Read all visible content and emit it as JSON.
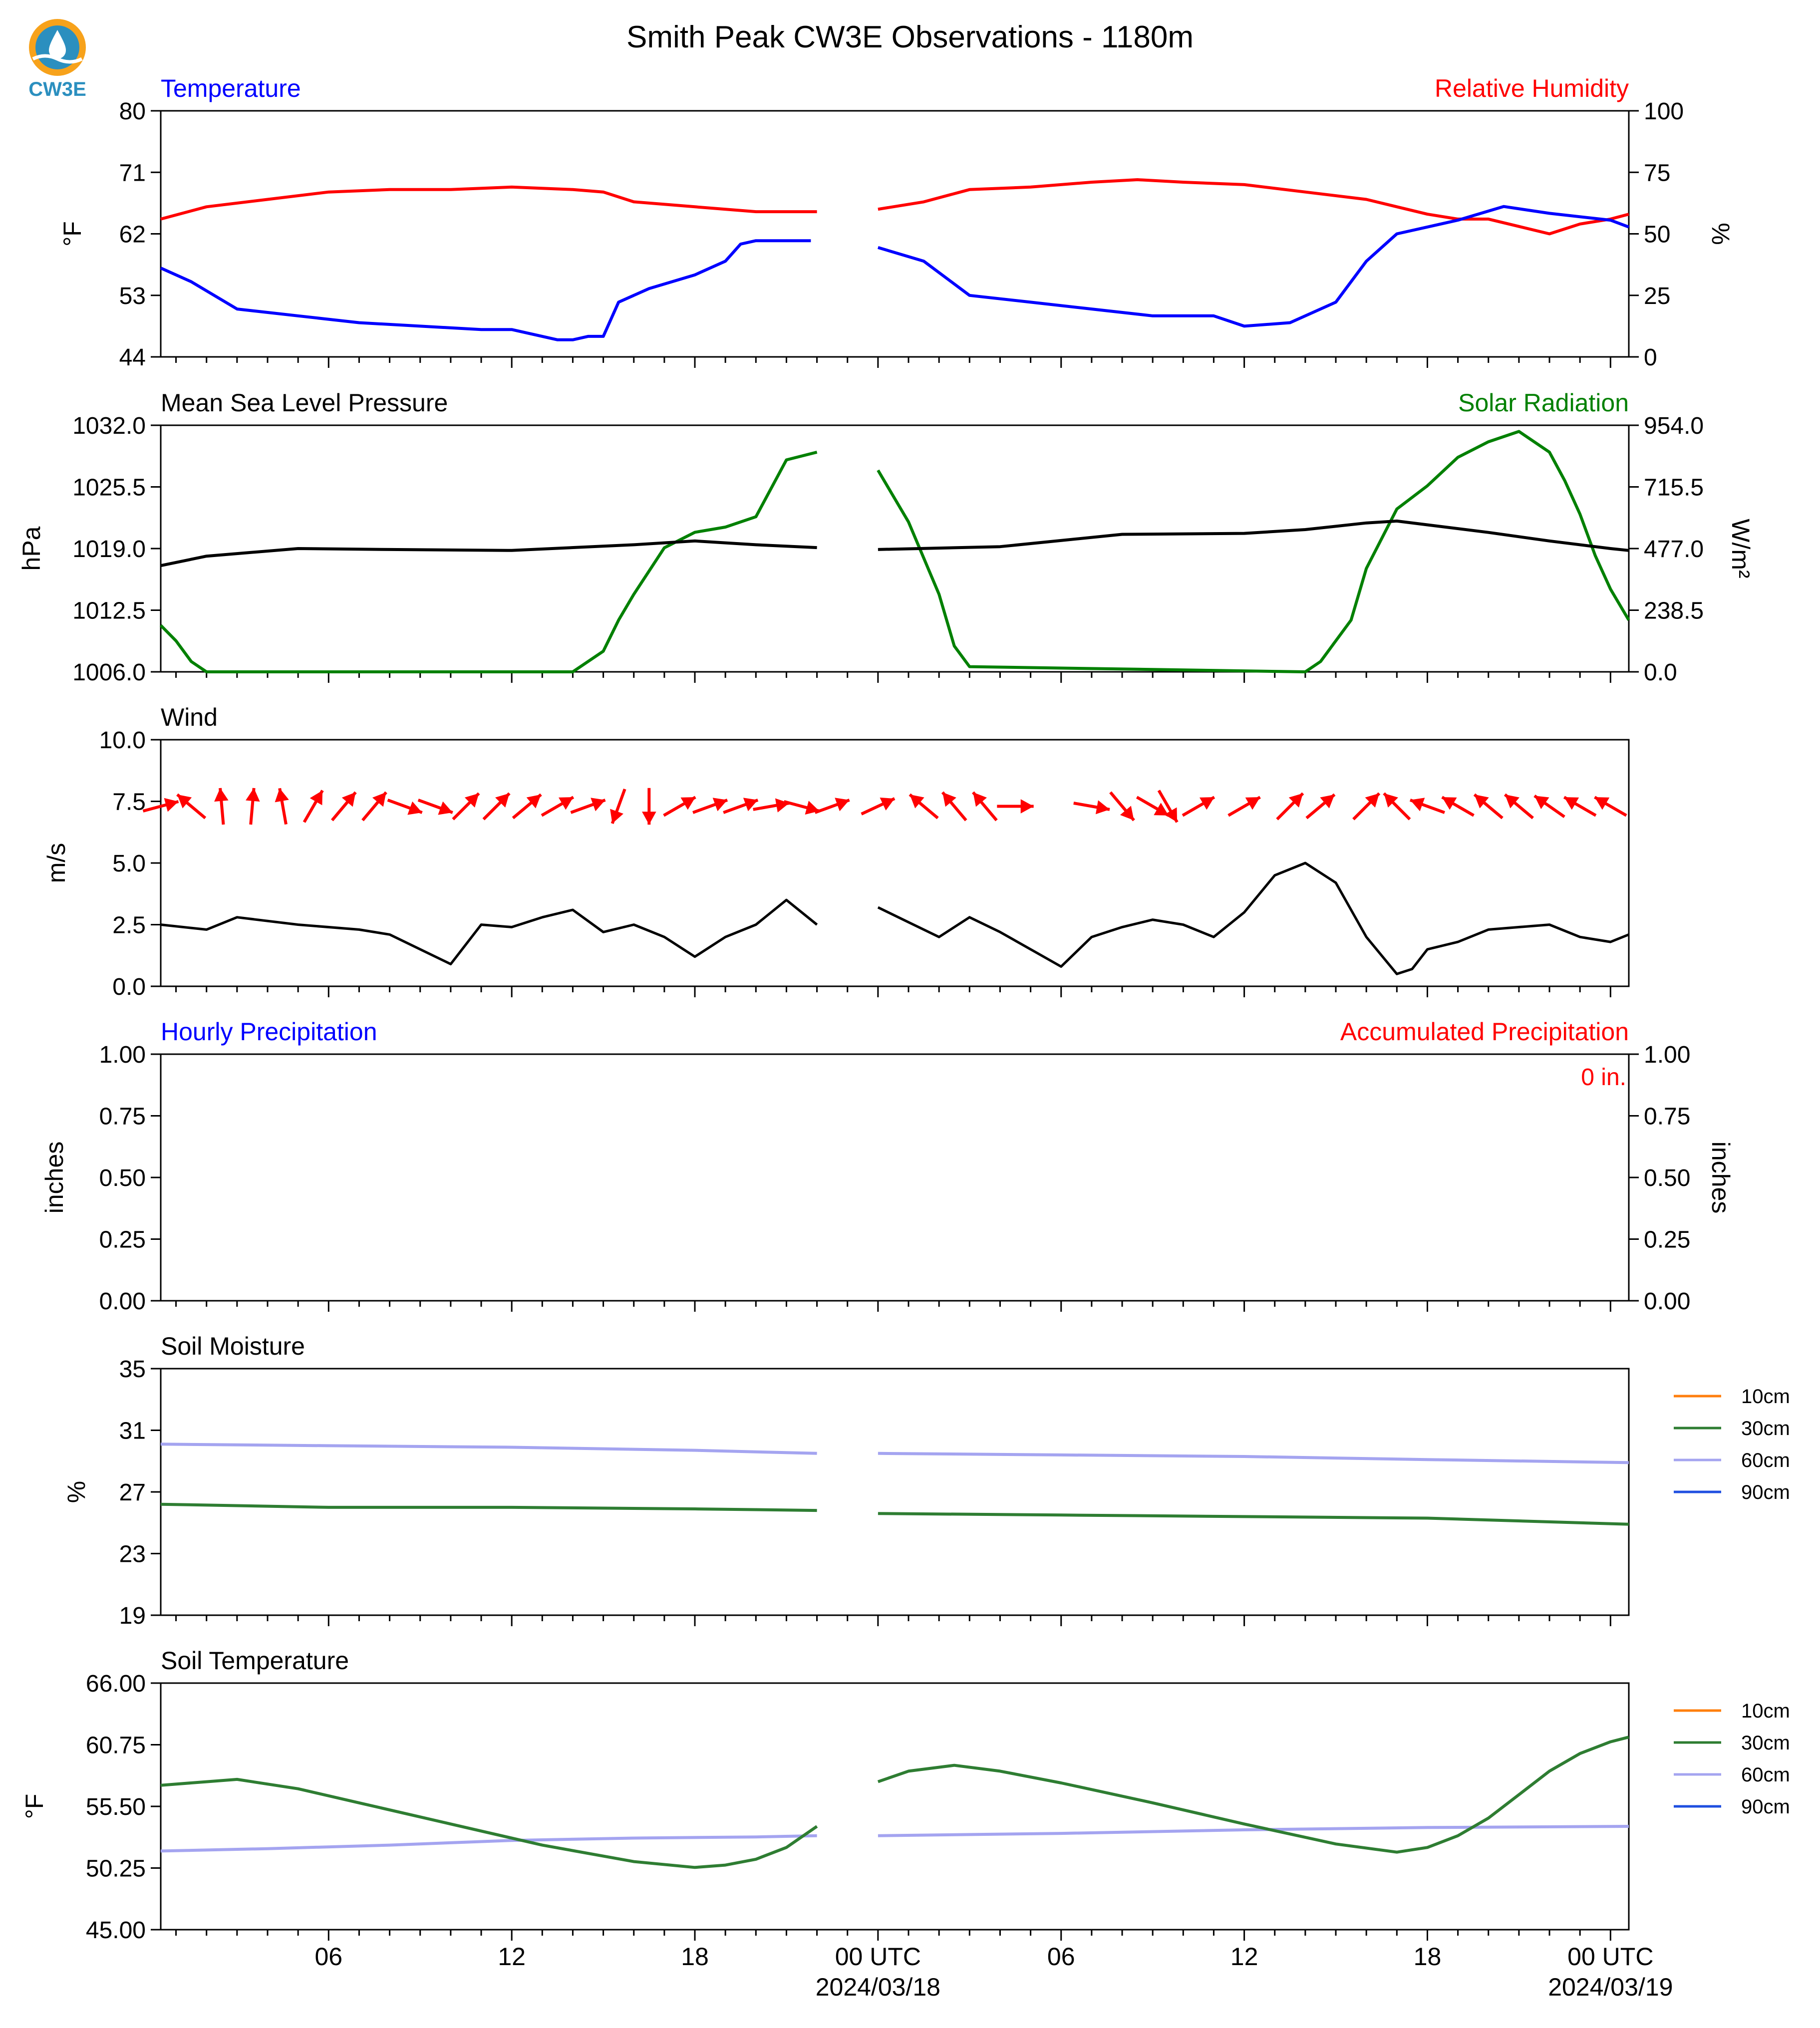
{
  "figure_title": "Smith Peak CW3E Observations - 1180m",
  "logo": {
    "text": "CW3E",
    "color": "#2b8fbf",
    "accent": "#f7a21b"
  },
  "time_axis": {
    "range_hours": [
      -23.5,
      24.6
    ],
    "ticks": [
      {
        "h": -18,
        "label": "06",
        "sub": ""
      },
      {
        "h": -12,
        "label": "12",
        "sub": ""
      },
      {
        "h": -6,
        "label": "18",
        "sub": ""
      },
      {
        "h": 0,
        "label": "00 UTC",
        "sub": "2024/03/18"
      },
      {
        "h": 6,
        "label": "06",
        "sub": ""
      },
      {
        "h": 12,
        "label": "12",
        "sub": ""
      },
      {
        "h": 18,
        "label": "18",
        "sub": ""
      },
      {
        "h": 24,
        "label": "00 UTC",
        "sub": "2024/03/19"
      }
    ],
    "data_gap_hours": [
      -2.0,
      0.0
    ]
  },
  "colors": {
    "temperature": "#0000ff",
    "humidity": "#ff0000",
    "pressure": "#000000",
    "solar": "#008000",
    "wind_speed": "#000000",
    "wind_arrow": "#ff0000",
    "precip_hourly": "#0000ff",
    "precip_accum": "#ff0000",
    "d10": "#ff7f0e",
    "d30": "#2e7d32",
    "d60": "#a4a4f0",
    "d90": "#1f4fe0"
  },
  "panels": {
    "temp_rh": {
      "left_title": "Temperature",
      "right_title": "Relative Humidity",
      "left_unit": "$^\\circ$F",
      "right_unit": "%",
      "left_ticks": [
        "44",
        "53",
        "62",
        "71",
        "80"
      ],
      "right_ticks": [
        "0",
        "25",
        "50",
        "75",
        "100"
      ]
    },
    "pressure_solar": {
      "left_title": "Mean Sea Level Pressure",
      "right_title": "Solar Radiation",
      "left_unit": "hPa",
      "right_unit": "W/m²",
      "left_ticks": [
        "1006.0",
        "1012.5",
        "1019.0",
        "1025.5",
        "1032.0"
      ],
      "right_ticks": [
        "0.0",
        "238.5",
        "477.0",
        "715.5",
        "954.0"
      ]
    },
    "wind": {
      "left_title": "Wind",
      "left_unit": "m/s",
      "left_ticks": [
        "0.0",
        "2.5",
        "5.0",
        "7.5",
        "10.0"
      ]
    },
    "precip": {
      "left_title": "Hourly Precipitation",
      "right_title": "Accumulated Precipitation",
      "left_unit": "inches",
      "right_unit": "inches",
      "left_ticks": [
        "0.00",
        "0.25",
        "0.50",
        "0.75",
        "1.00"
      ],
      "right_ticks": [
        "0.00",
        "0.25",
        "0.50",
        "0.75",
        "1.00"
      ],
      "accum_label": "0 in."
    },
    "soil_moist": {
      "left_title": "Soil Moisture",
      "left_unit": "%",
      "left_ticks": [
        "19",
        "23",
        "27",
        "31",
        "35"
      ],
      "legend": [
        "10cm",
        "30cm",
        "60cm",
        "90cm"
      ]
    },
    "soil_temp": {
      "left_title": "Soil Temperature",
      "left_unit": "$^\\circ$F",
      "left_ticks": [
        "45.00",
        "50.25",
        "55.50",
        "60.75",
        "66.00"
      ],
      "legend": [
        "10cm",
        "30cm",
        "60cm",
        "90cm"
      ]
    }
  },
  "chart_data": [
    {
      "type": "line",
      "title": "Temperature / Relative Humidity",
      "x_unit": "hours relative to 2024-03-18 00 UTC",
      "series": [
        {
          "name": "Temperature",
          "axis": "left",
          "unit": "°F",
          "ylim": [
            44,
            80
          ],
          "x": [
            -23.5,
            -22.5,
            -21,
            -19,
            -17,
            -15,
            -13,
            -12,
            -11,
            -10.5,
            -10,
            -9.5,
            -9,
            -8.5,
            -7.5,
            -6,
            -5,
            -4.5,
            -4,
            -2.2,
            0,
            1.5,
            3,
            5,
            7,
            9,
            11,
            12,
            13.5,
            15,
            16,
            17,
            18,
            19,
            20.5,
            22,
            24,
            24.6
          ],
          "y": [
            57,
            55,
            51,
            50,
            49,
            48.5,
            48,
            48,
            47,
            46.5,
            46.5,
            47,
            47,
            52,
            54,
            56,
            58,
            60.5,
            61,
            61,
            60,
            58,
            53,
            52,
            51,
            50,
            50,
            48.5,
            49,
            52,
            58,
            62,
            63,
            64,
            66,
            65,
            64,
            63
          ]
        },
        {
          "name": "Relative Humidity",
          "axis": "right",
          "unit": "%",
          "ylim": [
            0,
            100
          ],
          "x": [
            -23.5,
            -22,
            -20,
            -18,
            -16,
            -14,
            -12,
            -10,
            -9,
            -8,
            -6,
            -4,
            -2,
            0,
            1.5,
            3,
            5,
            7,
            8.5,
            10,
            12,
            14,
            16,
            17,
            18,
            19,
            20,
            21,
            22,
            23,
            24,
            24.6
          ],
          "y": [
            56,
            61,
            64,
            67,
            68,
            68,
            69,
            68,
            67,
            63,
            61,
            59,
            59,
            60,
            63,
            68,
            69,
            71,
            72,
            71,
            70,
            67,
            64,
            61,
            58,
            56,
            56,
            53,
            50,
            54,
            56,
            58
          ]
        }
      ]
    },
    {
      "type": "line",
      "title": "Mean Sea Level Pressure / Solar Radiation",
      "x_unit": "hours relative to 2024-03-18 00 UTC",
      "series": [
        {
          "name": "Mean Sea Level Pressure",
          "axis": "left",
          "unit": "hPa",
          "ylim": [
            1006,
            1032
          ],
          "x": [
            -23.5,
            -22,
            -19,
            -16,
            -12,
            -8,
            -6,
            -4,
            -2,
            0,
            4,
            8,
            12,
            14,
            16,
            17,
            18,
            20,
            22,
            24,
            24.6
          ],
          "y": [
            1017.2,
            1018.2,
            1019,
            1018.9,
            1018.8,
            1019.4,
            1019.8,
            1019.4,
            1019.1,
            1018.9,
            1019.2,
            1020.5,
            1020.6,
            1021.0,
            1021.7,
            1021.9,
            1021.5,
            1020.7,
            1019.8,
            1019.0,
            1018.8
          ]
        },
        {
          "name": "Solar Radiation",
          "axis": "right",
          "unit": "W/m²",
          "ylim": [
            0,
            954
          ],
          "x": [
            -23.5,
            -23,
            -22.5,
            -22,
            -15,
            -13,
            -12,
            -11,
            -10,
            -9,
            -8.5,
            -8,
            -7,
            -6,
            -5,
            -4,
            -3,
            -2,
            0,
            1,
            2,
            2.5,
            3,
            14,
            14.5,
            15,
            15.5,
            16,
            17,
            18,
            19,
            20,
            21,
            22,
            22.5,
            23,
            23.5,
            24,
            24.6
          ],
          "y": [
            180,
            120,
            40,
            0,
            0,
            0,
            0,
            0,
            0,
            80,
            200,
            300,
            480,
            540,
            560,
            600,
            820,
            850,
            780,
            580,
            300,
            100,
            20,
            0,
            40,
            120,
            200,
            400,
            630,
            720,
            830,
            890,
            930,
            850,
            740,
            610,
            450,
            320,
            200
          ]
        }
      ]
    },
    {
      "type": "line",
      "title": "Wind",
      "x_unit": "hours relative to 2024-03-18 00 UTC",
      "series": [
        {
          "name": "Wind Speed",
          "unit": "m/s",
          "ylim": [
            0,
            10
          ],
          "x": [
            -23.5,
            -22,
            -21,
            -19,
            -17,
            -16,
            -15,
            -14,
            -13,
            -12,
            -11,
            -10,
            -9,
            -8,
            -7,
            -6,
            -5,
            -4,
            -3,
            -2,
            0,
            1,
            2,
            3,
            4,
            5,
            6,
            7,
            8,
            9,
            10,
            11,
            12,
            13,
            14,
            15,
            16,
            17,
            17.5,
            18,
            19,
            20,
            21,
            22,
            23,
            24,
            24.6
          ],
          "y": [
            2.5,
            2.3,
            2.8,
            2.5,
            2.3,
            2.1,
            1.5,
            0.9,
            2.5,
            2.4,
            2.8,
            3.1,
            2.2,
            2.5,
            2.0,
            1.2,
            2.0,
            2.5,
            3.5,
            2.5,
            3.2,
            2.6,
            2.0,
            2.8,
            2.2,
            1.5,
            0.8,
            2.0,
            2.4,
            2.7,
            2.5,
            2.0,
            3.0,
            4.5,
            5.0,
            4.2,
            2.0,
            0.5,
            0.7,
            1.5,
            1.8,
            2.3,
            2.4,
            2.5,
            2.0,
            1.8,
            2.1
          ]
        },
        {
          "name": "Wind Direction",
          "unit": "arrow",
          "arrow_y": 7.3,
          "arrow_length_hours": 1.2,
          "x": [
            -23.5,
            -22.5,
            -21.5,
            -20.5,
            -19.5,
            -18.5,
            -17.5,
            -16.5,
            -15.5,
            -14.5,
            -13.5,
            -12.5,
            -11.5,
            -10.5,
            -9.5,
            -8.5,
            -7.5,
            -6.5,
            -5.5,
            -4.5,
            -3.5,
            -2.5,
            -1.5,
            0,
            1.5,
            2.5,
            3.5,
            4.5,
            7,
            8,
            9,
            9.5,
            10.5,
            12,
            13.5,
            14.5,
            16,
            17,
            18,
            19,
            20,
            21,
            22,
            23,
            24
          ],
          "angle_deg": [
            15,
            140,
            95,
            85,
            100,
            60,
            50,
            50,
            -20,
            -20,
            45,
            45,
            40,
            30,
            20,
            -110,
            -90,
            30,
            20,
            20,
            10,
            -15,
            20,
            25,
            140,
            130,
            130,
            0,
            -10,
            -50,
            -30,
            -60,
            30,
            30,
            45,
            40,
            45,
            135,
            160,
            150,
            140,
            140,
            145,
            150,
            150
          ]
        }
      ]
    },
    {
      "type": "line",
      "title": "Precipitation",
      "x_unit": "hours relative to 2024-03-18 00 UTC",
      "series": [
        {
          "name": "Hourly Precipitation",
          "axis": "left",
          "unit": "inches",
          "ylim": [
            0,
            1
          ],
          "x": [
            -23.5,
            24.6
          ],
          "y": [
            0,
            0
          ]
        },
        {
          "name": "Accumulated Precipitation",
          "axis": "right",
          "unit": "inches",
          "ylim": [
            0,
            1
          ],
          "x": [
            -23.5,
            24.6
          ],
          "y": [
            0,
            0
          ]
        }
      ]
    },
    {
      "type": "line",
      "title": "Soil Moisture",
      "x_unit": "hours relative to 2024-03-18 00 UTC",
      "ylim": [
        19,
        35
      ],
      "series": [
        {
          "name": "30cm",
          "x": [
            -23.5,
            -18,
            -12,
            -6,
            -2,
            0,
            6,
            12,
            18,
            24.6
          ],
          "y": [
            26.2,
            26.0,
            26.0,
            25.9,
            25.8,
            25.6,
            25.5,
            25.4,
            25.3,
            24.9
          ]
        },
        {
          "name": "60cm",
          "x": [
            -23.5,
            -18,
            -12,
            -6,
            -2,
            0,
            6,
            12,
            18,
            24.6
          ],
          "y": [
            30.1,
            30.0,
            29.9,
            29.7,
            29.5,
            29.5,
            29.4,
            29.3,
            29.1,
            28.9
          ]
        }
      ]
    },
    {
      "type": "line",
      "title": "Soil Temperature",
      "x_unit": "hours relative to 2024-03-18 00 UTC",
      "ylim": [
        45,
        66
      ],
      "series": [
        {
          "name": "30cm",
          "x": [
            -23.5,
            -22,
            -21,
            -19,
            -17,
            -14,
            -11,
            -8,
            -6,
            -5,
            -4,
            -3,
            -2,
            0,
            1,
            2.5,
            4,
            6,
            9,
            12,
            15,
            17,
            18,
            19,
            20,
            21,
            22,
            23,
            24,
            24.6
          ],
          "y": [
            57.3,
            57.6,
            57.8,
            57.0,
            55.8,
            54.0,
            52.2,
            50.8,
            50.3,
            50.5,
            51.0,
            52.0,
            53.8,
            57.6,
            58.5,
            59.0,
            58.5,
            57.5,
            55.8,
            54.0,
            52.3,
            51.6,
            52.0,
            53.0,
            54.5,
            56.5,
            58.5,
            60.0,
            61.0,
            61.4
          ]
        },
        {
          "name": "60cm",
          "x": [
            -23.5,
            -20,
            -16,
            -12,
            -8,
            -4,
            -2,
            0,
            6,
            12,
            18,
            24.6
          ],
          "y": [
            51.7,
            51.9,
            52.2,
            52.6,
            52.8,
            52.9,
            53.0,
            53.0,
            53.2,
            53.5,
            53.7,
            53.8
          ]
        }
      ]
    }
  ]
}
